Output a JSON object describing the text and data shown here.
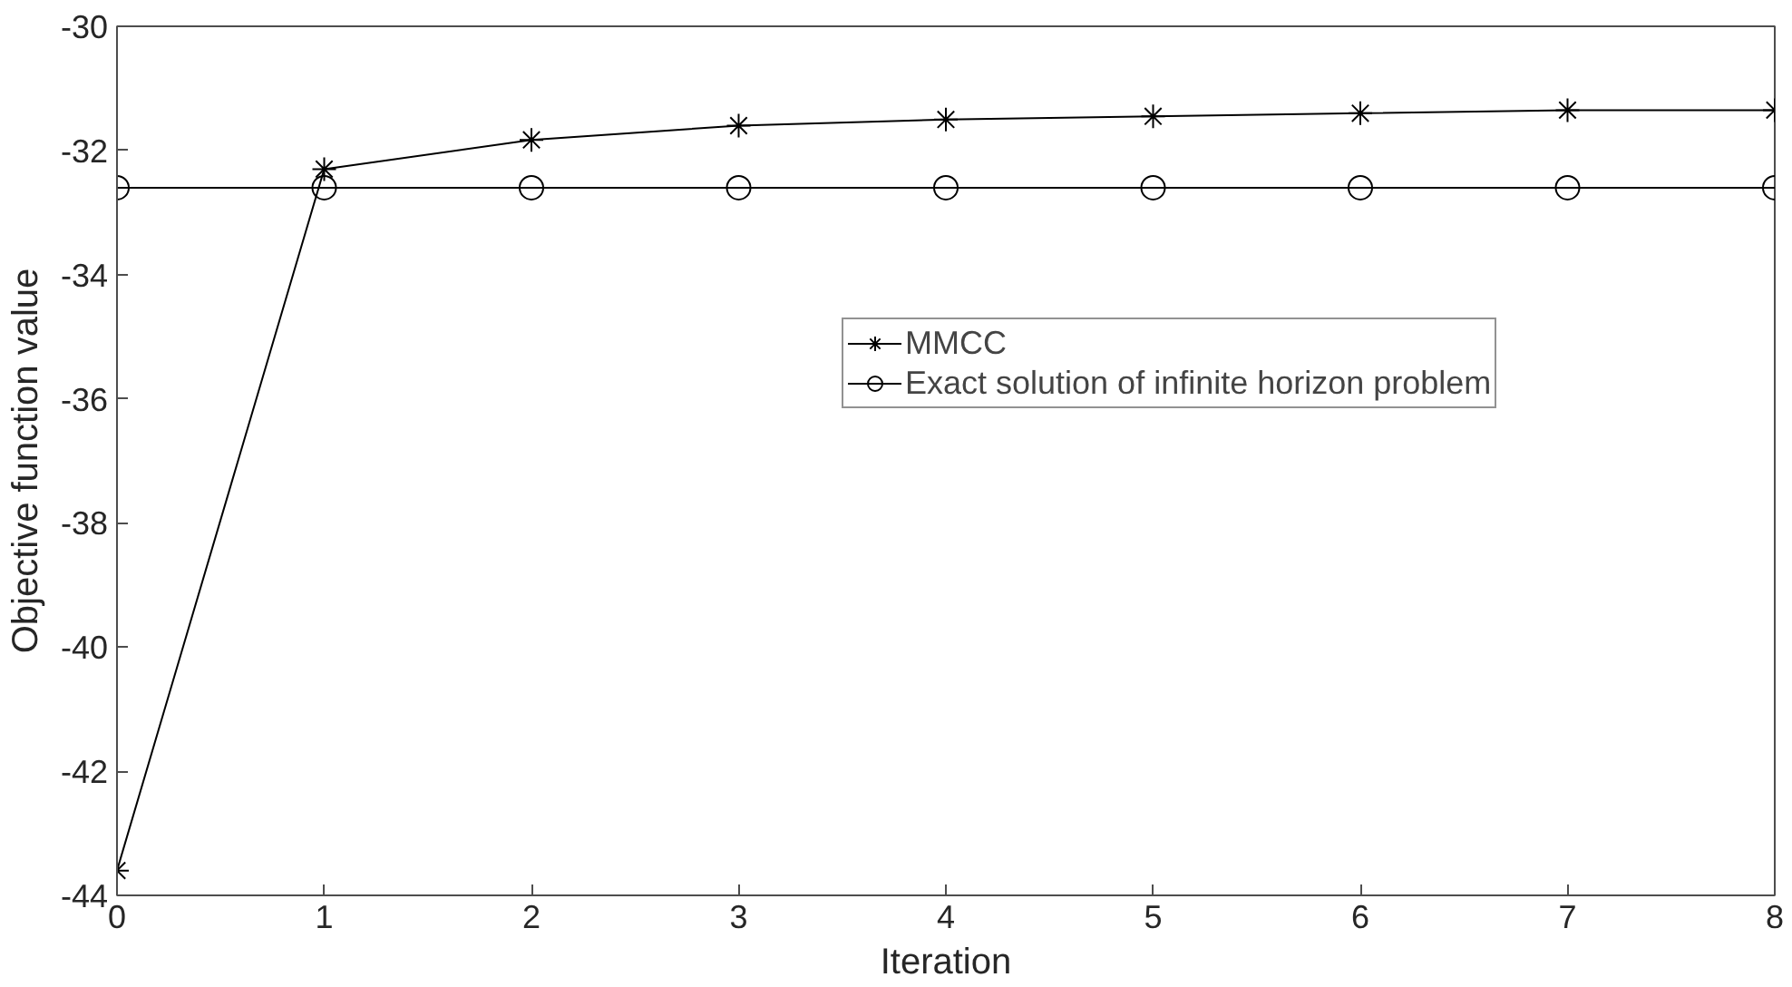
{
  "chart_data": {
    "type": "line",
    "xlabel": "Iteration",
    "ylabel": "Objective function value",
    "x": [
      0,
      1,
      2,
      3,
      4,
      5,
      6,
      7,
      8
    ],
    "series": [
      {
        "name": "MMCC",
        "color": "#000000",
        "marker": "cross",
        "values": [
          -43.6,
          -32.3,
          -31.83,
          -31.6,
          -31.5,
          -31.45,
          -31.4,
          -31.35,
          -31.35
        ]
      },
      {
        "name": "Exact solution of infinite horizon problem",
        "color": "#000000",
        "marker": "circle",
        "values": [
          -32.6,
          -32.6,
          -32.6,
          -32.6,
          -32.6,
          -32.6,
          -32.6,
          -32.6,
          -32.6
        ]
      }
    ],
    "xlim": [
      0,
      8
    ],
    "xticks": [
      0,
      1,
      2,
      3,
      4,
      5,
      6,
      7,
      8
    ],
    "ylim": [
      -44,
      -30
    ],
    "yticks": [
      -44,
      -42,
      -40,
      -38,
      -36,
      -34,
      -32,
      -30
    ],
    "grid": false,
    "legend": "top right",
    "line_style": "solid"
  }
}
